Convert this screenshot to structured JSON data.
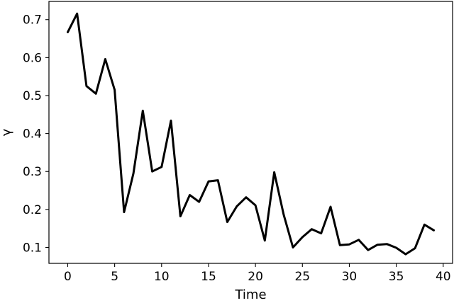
{
  "chart_data": {
    "type": "line",
    "title": "",
    "xlabel": "Time",
    "ylabel": "γ",
    "xlim": [
      -2,
      41
    ],
    "ylim": [
      0.058,
      0.748
    ],
    "xticks": [
      0,
      5,
      10,
      15,
      20,
      25,
      30,
      35,
      40
    ],
    "yticks": [
      0.1,
      0.2,
      0.3,
      0.4,
      0.5,
      0.6,
      0.7
    ],
    "grid": false,
    "legend": "none",
    "series": [
      {
        "color": "#000000",
        "x": [
          0,
          1,
          2,
          3,
          4,
          5,
          6,
          7,
          8,
          9,
          10,
          11,
          12,
          13,
          14,
          15,
          16,
          17,
          18,
          19,
          20,
          21,
          22,
          23,
          24,
          25,
          26,
          27,
          28,
          29,
          30,
          31,
          32,
          33,
          34,
          35,
          36,
          37,
          38,
          39
        ],
        "values": [
          0.667,
          0.716,
          0.525,
          0.505,
          0.596,
          0.515,
          0.193,
          0.295,
          0.46,
          0.3,
          0.312,
          0.434,
          0.182,
          0.238,
          0.22,
          0.274,
          0.277,
          0.167,
          0.208,
          0.232,
          0.211,
          0.118,
          0.298,
          0.187,
          0.1,
          0.127,
          0.148,
          0.137,
          0.207,
          0.106,
          0.108,
          0.12,
          0.093,
          0.107,
          0.109,
          0.099,
          0.082,
          0.098,
          0.16,
          0.145
        ]
      }
    ]
  }
}
